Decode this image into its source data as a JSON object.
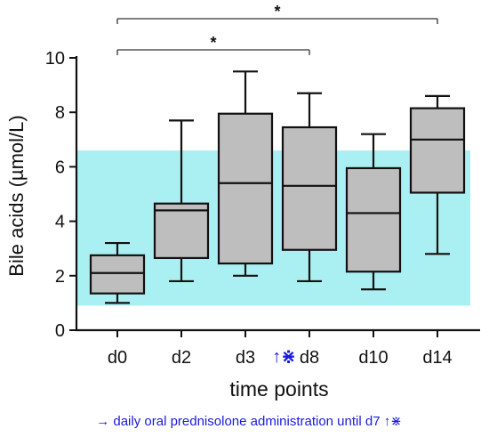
{
  "chart_data": {
    "type": "box",
    "categories": [
      "d0",
      "d2",
      "d3",
      "d8",
      "d10",
      "d14"
    ],
    "boxes": [
      {
        "category": "d0",
        "min": 1.0,
        "q1": 1.35,
        "median": 2.1,
        "q3": 2.75,
        "max": 3.2
      },
      {
        "category": "d2",
        "min": 1.8,
        "q1": 2.65,
        "median": 4.4,
        "q3": 4.65,
        "max": 7.7
      },
      {
        "category": "d3",
        "min": 2.0,
        "q1": 2.45,
        "median": 5.4,
        "q3": 7.95,
        "max": 9.5
      },
      {
        "category": "d8",
        "min": 1.8,
        "q1": 2.95,
        "median": 5.3,
        "q3": 7.45,
        "max": 8.7
      },
      {
        "category": "d10",
        "min": 1.5,
        "q1": 2.15,
        "median": 4.3,
        "q3": 5.95,
        "max": 7.2
      },
      {
        "category": "d14",
        "min": 2.8,
        "q1": 5.05,
        "median": 7.0,
        "q3": 8.15,
        "max": 8.6
      }
    ],
    "reference_range": {
      "low": 0.9,
      "high": 6.6,
      "color": "#aaf0f3"
    },
    "significance": [
      {
        "from": "d0",
        "to": "d14",
        "label": "*"
      },
      {
        "from": "d0",
        "to": "d8",
        "label": "*"
      }
    ],
    "ylabel": "Bile acids (µmol/L)",
    "xlabel": "time points",
    "ylim": [
      0,
      10
    ],
    "yticks": [
      "0",
      "2",
      "4",
      "6",
      "8",
      "10"
    ],
    "box_fill": "#bebebe",
    "marker_color": "#1a1adc",
    "d8_marker": "↑⋇",
    "footnote": "→ daily oral prednisolone administration until d7 ↑⋇",
    "grid": false
  }
}
